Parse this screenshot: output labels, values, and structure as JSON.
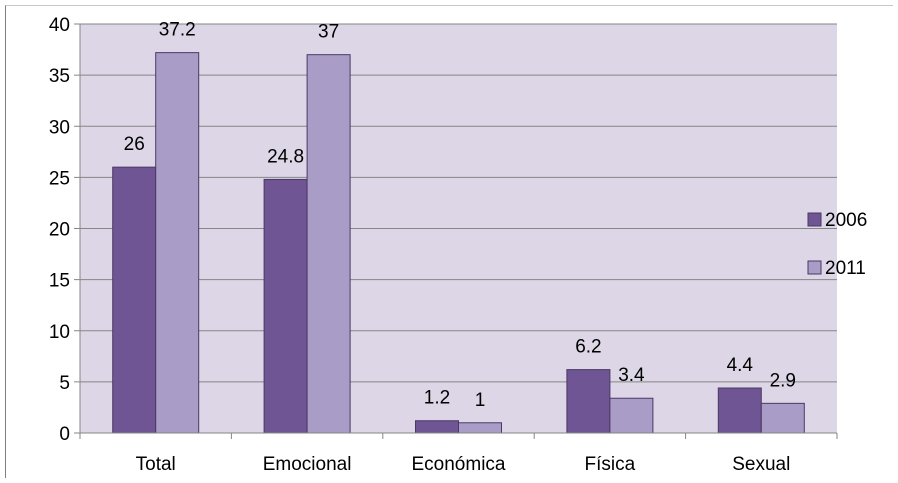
{
  "chart_data": {
    "type": "bar",
    "categories": [
      "Total",
      "Emocional",
      "Económica",
      "Física",
      "Sexual"
    ],
    "series": [
      {
        "name": "2006",
        "values": [
          26,
          24.8,
          1.2,
          6.2,
          4.4
        ],
        "color": "#6f5593",
        "data_labels": [
          "26",
          "24.8",
          "1.2",
          "6.2",
          "4.4"
        ]
      },
      {
        "name": "2011",
        "values": [
          37.2,
          37,
          1,
          3.4,
          2.9
        ],
        "color": "#a99cc6",
        "data_labels": [
          "37.2",
          "37",
          "1",
          "3.4",
          "2.9"
        ]
      }
    ],
    "ylim": [
      0,
      40
    ],
    "yticks": [
      "0",
      "5",
      "10",
      "15",
      "20",
      "25",
      "30",
      "35",
      "40"
    ],
    "grid": true,
    "plot_background": "#dcd6e6",
    "legend_position": "right"
  }
}
